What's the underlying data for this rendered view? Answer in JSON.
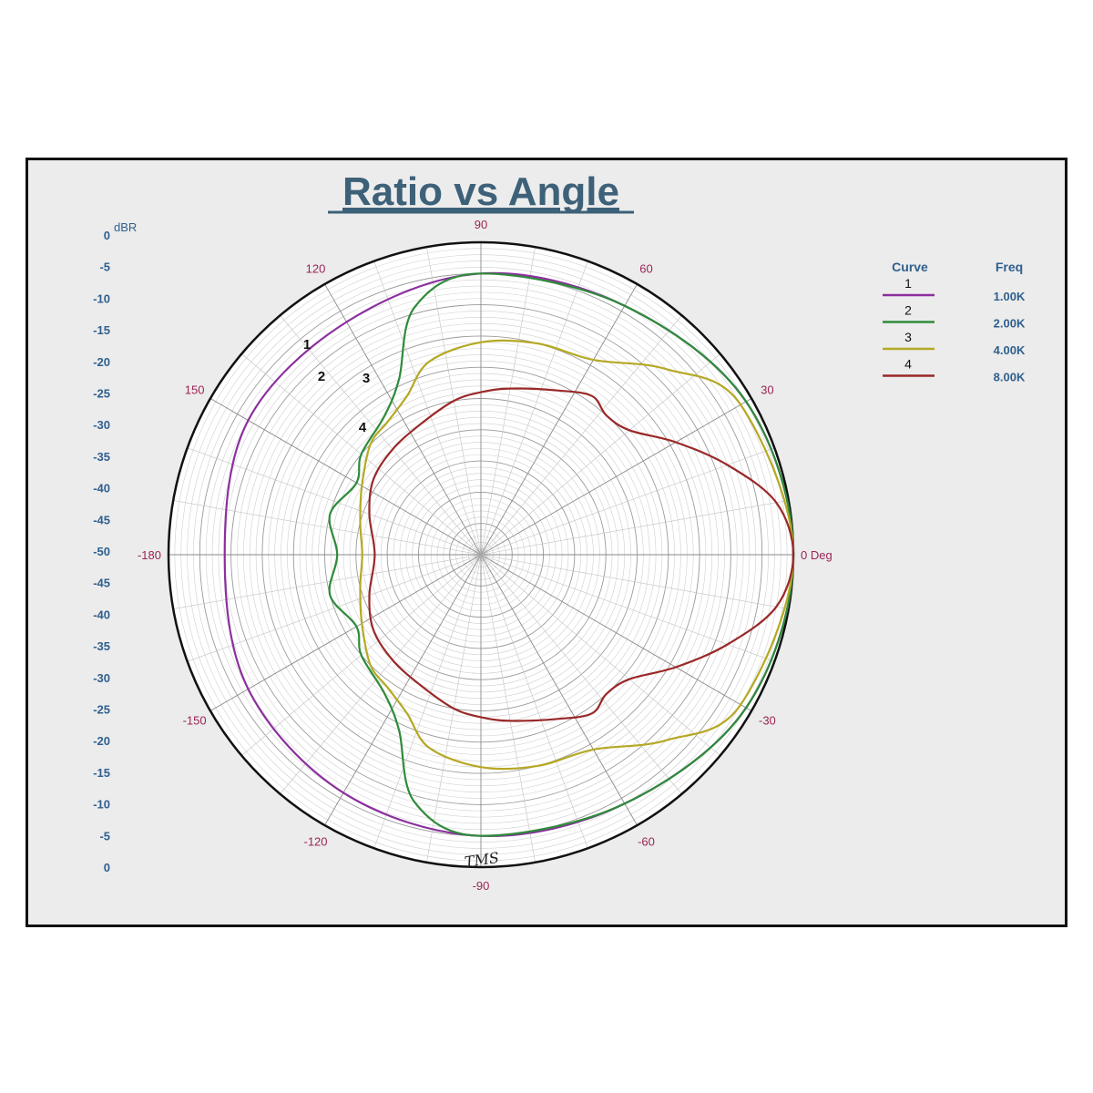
{
  "chart_data": {
    "type": "polar",
    "title": "Ratio vs Angle",
    "radial_axis": {
      "label": "dBR",
      "range": [
        -50,
        0
      ],
      "ticks_left": [
        "0",
        "-5",
        "-10",
        "-15",
        "-20",
        "-25",
        "-30",
        "-35",
        "-40",
        "-45",
        "-50",
        "-45",
        "-40",
        "-35",
        "-30",
        "-25",
        "-20",
        "-15",
        "-10",
        "-5",
        "0"
      ]
    },
    "angle_ticks": [
      {
        "angle": 0,
        "label": "0 Deg"
      },
      {
        "angle": 30,
        "label": "30"
      },
      {
        "angle": 60,
        "label": "60"
      },
      {
        "angle": 90,
        "label": "90"
      },
      {
        "angle": 120,
        "label": "120"
      },
      {
        "angle": 150,
        "label": "150"
      },
      {
        "angle": 180,
        "label": "-180"
      },
      {
        "angle": -150,
        "label": "-150"
      },
      {
        "angle": -120,
        "label": "-120"
      },
      {
        "angle": -90,
        "label": "-90"
      },
      {
        "angle": -60,
        "label": "-60"
      },
      {
        "angle": -30,
        "label": "-30"
      }
    ],
    "legend": {
      "placement": "right",
      "header_curve": "Curve",
      "header_freq": "Freq"
    },
    "series": [
      {
        "curve": "1",
        "freq": "1.00K",
        "color": "#8b2f9e",
        "points": [
          [
            0,
            0
          ],
          [
            30,
            -1
          ],
          [
            60,
            -4
          ],
          [
            90,
            -5
          ],
          [
            120,
            -7
          ],
          [
            150,
            -7
          ],
          [
            180,
            -9
          ],
          [
            -150,
            -7
          ],
          [
            -120,
            -6
          ],
          [
            -90,
            -5
          ],
          [
            -60,
            -4
          ],
          [
            -30,
            -1
          ]
        ]
      },
      {
        "curve": "2",
        "freq": "2.00K",
        "color": "#2e8b3a",
        "points": [
          [
            0,
            0
          ],
          [
            30,
            -1
          ],
          [
            60,
            -4
          ],
          [
            90,
            -5
          ],
          [
            105,
            -9
          ],
          [
            115,
            -19
          ],
          [
            125,
            -23
          ],
          [
            140,
            -25
          ],
          [
            150,
            -27
          ],
          [
            165,
            -25
          ],
          [
            180,
            -27
          ],
          [
            -165,
            -25
          ],
          [
            -150,
            -27
          ],
          [
            -140,
            -25
          ],
          [
            -125,
            -23
          ],
          [
            -115,
            -19
          ],
          [
            -105,
            -9
          ],
          [
            -90,
            -5
          ],
          [
            -60,
            -4
          ],
          [
            -30,
            -1
          ]
        ]
      },
      {
        "curve": "3",
        "freq": "4.00K",
        "color": "#b5a824",
        "points": [
          [
            0,
            0
          ],
          [
            30,
            -2
          ],
          [
            45,
            -8
          ],
          [
            60,
            -14
          ],
          [
            75,
            -15
          ],
          [
            90,
            -16
          ],
          [
            105,
            -18
          ],
          [
            115,
            -22
          ],
          [
            125,
            -24
          ],
          [
            135,
            -25
          ],
          [
            150,
            -28
          ],
          [
            165,
            -30
          ],
          [
            180,
            -31
          ],
          [
            -165,
            -30
          ],
          [
            -150,
            -28
          ],
          [
            -135,
            -25
          ],
          [
            -125,
            -24
          ],
          [
            -115,
            -22
          ],
          [
            -105,
            -18
          ],
          [
            -90,
            -16
          ],
          [
            -75,
            -15
          ],
          [
            -60,
            -14
          ],
          [
            -45,
            -8
          ],
          [
            -30,
            -2
          ]
        ]
      },
      {
        "curve": "4",
        "freq": "8.00K",
        "color": "#9a2828",
        "points": [
          [
            0,
            0
          ],
          [
            10,
            -2
          ],
          [
            20,
            -8
          ],
          [
            30,
            -14
          ],
          [
            40,
            -19
          ],
          [
            48,
            -20
          ],
          [
            55,
            -19
          ],
          [
            65,
            -21
          ],
          [
            80,
            -23
          ],
          [
            90,
            -24
          ],
          [
            100,
            -25
          ],
          [
            115,
            -27
          ],
          [
            130,
            -28
          ],
          [
            145,
            -29
          ],
          [
            160,
            -31
          ],
          [
            180,
            -33
          ],
          [
            -160,
            -31
          ],
          [
            -145,
            -29
          ],
          [
            -130,
            -28
          ],
          [
            -115,
            -27
          ],
          [
            -100,
            -25
          ],
          [
            -90,
            -24
          ],
          [
            -80,
            -23
          ],
          [
            -65,
            -21
          ],
          [
            -55,
            -19
          ],
          [
            -48,
            -20
          ],
          [
            -40,
            -19
          ],
          [
            -30,
            -14
          ],
          [
            -20,
            -8
          ],
          [
            -10,
            -2
          ]
        ]
      }
    ],
    "curve_labels": [
      "1",
      "2",
      "3",
      "4"
    ],
    "grid": true
  },
  "annotation": "TMS",
  "colors": {
    "frame_bg": "#ececec",
    "grid": "#b8b8b8",
    "axis_text": "#2f5f8e",
    "angle_text": "#9b2456"
  }
}
